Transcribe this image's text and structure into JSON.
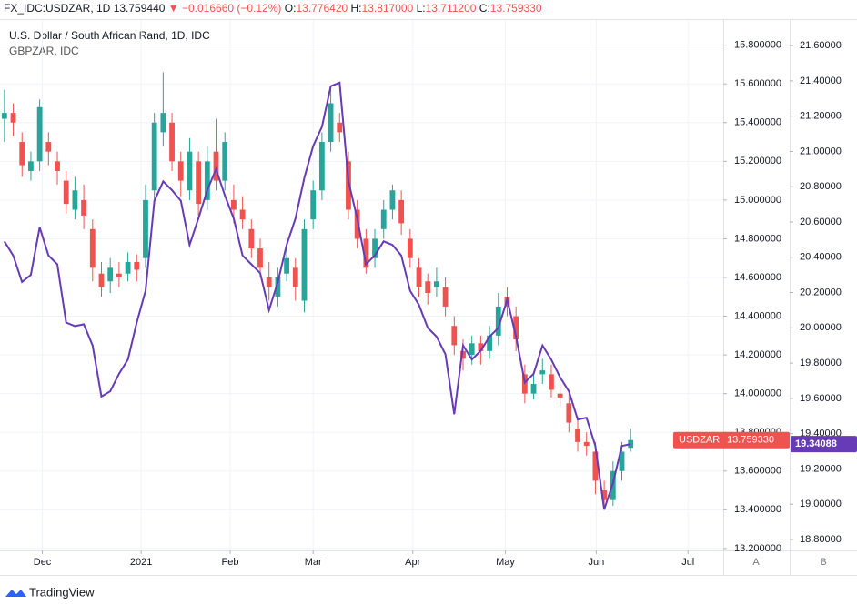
{
  "header": {
    "symbol": "FX_IDC:USDZAR, 1D",
    "last": "13.759440",
    "change": "▼ −0.016660 (−0.12%)",
    "o_label": "O:",
    "o": "13.776420",
    "h_label": "H:",
    "h": "13.817000",
    "l_label": "L:",
    "l": "13.711200",
    "c_label": "C:",
    "c": "13.759330"
  },
  "footer": {
    "brand": "TradingView",
    "axis_a": "A",
    "axis_b": "B"
  },
  "chart_data": {
    "type": "candlestick",
    "title": "U.S. Dollar / South African Rand, 1D, IDC",
    "grid": true,
    "xlim": [
      -0.5,
      81.5
    ],
    "xticks": [
      {
        "value": 4.3,
        "label": "Dec"
      },
      {
        "value": 15.5,
        "label": "2021"
      },
      {
        "value": 25.6,
        "label": "Feb"
      },
      {
        "value": 35,
        "label": "Mar"
      },
      {
        "value": 46.3,
        "label": "Apr"
      },
      {
        "value": 56.8,
        "label": "May"
      },
      {
        "value": 67.1,
        "label": "Jun"
      },
      {
        "value": 77.5,
        "label": "Jul"
      }
    ],
    "ylim": [
      13.19,
      15.93
    ],
    "yticks": [
      {
        "value": 13.2,
        "label": "13.200000"
      },
      {
        "value": 13.4,
        "label": "13.400000"
      },
      {
        "value": 13.6,
        "label": "13.600000"
      },
      {
        "value": 13.8,
        "label": "13.800000"
      },
      {
        "value": 14.0,
        "label": "14.000000"
      },
      {
        "value": 14.2,
        "label": "14.200000"
      },
      {
        "value": 14.4,
        "label": "14.400000"
      },
      {
        "value": 14.6,
        "label": "14.600000"
      },
      {
        "value": 14.8,
        "label": "14.800000"
      },
      {
        "value": 15.0,
        "label": "15.000000"
      },
      {
        "value": 15.2,
        "label": "15.200000"
      },
      {
        "value": 15.4,
        "label": "15.400000"
      },
      {
        "value": 15.6,
        "label": "15.600000"
      },
      {
        "value": 15.8,
        "label": "15.800000"
      }
    ],
    "y2lim": [
      18.738,
      21.745
    ],
    "y2ticks": [
      {
        "value": 18.8,
        "label": "18.80000"
      },
      {
        "value": 19.0,
        "label": "19.00000"
      },
      {
        "value": 19.2,
        "label": "19.20000"
      },
      {
        "value": 19.4,
        "label": "19.40000"
      },
      {
        "value": 19.6,
        "label": "19.60000"
      },
      {
        "value": 19.8,
        "label": "19.80000"
      },
      {
        "value": 20.0,
        "label": "20.00000"
      },
      {
        "value": 20.2,
        "label": "20.20000"
      },
      {
        "value": 20.4,
        "label": "20.40000"
      },
      {
        "value": 20.6,
        "label": "20.60000"
      },
      {
        "value": 20.8,
        "label": "20.80000"
      },
      {
        "value": 21.0,
        "label": "21.00000"
      },
      {
        "value": 21.2,
        "label": "21.20000"
      },
      {
        "value": 21.4,
        "label": "21.40000"
      },
      {
        "value": 21.6,
        "label": "21.60000"
      }
    ],
    "series": [
      {
        "name": "USDZAR",
        "type": "candlestick",
        "up_color": "#26a69a",
        "down_color": "#ef5350",
        "last_label": "13.759330",
        "open": [
          15.42,
          15.45,
          15.3,
          15.15,
          15.2,
          15.3,
          15.2,
          15.1,
          14.95,
          15.0,
          14.85,
          14.62,
          14.58,
          14.62,
          14.62,
          14.68,
          14.7,
          15.05,
          15.35,
          15.4,
          15.2,
          15.05,
          15.2,
          15.0,
          15.25,
          15.1,
          15.0,
          14.95,
          14.85,
          14.75,
          14.6,
          14.5,
          14.62,
          14.65,
          14.48,
          14.9,
          15.05,
          15.3,
          15.4,
          15.2,
          14.95,
          14.8,
          14.7,
          14.85,
          14.95,
          15.0,
          14.8,
          14.65,
          14.58,
          14.55,
          14.55,
          14.35,
          14.22,
          14.2,
          14.26,
          14.22,
          14.3,
          14.5,
          14.4,
          14.1,
          14.0,
          14.1,
          14.1,
          14.0,
          13.95,
          13.82,
          13.75,
          13.7,
          13.5,
          13.45,
          13.6,
          13.72
        ],
        "high": [
          15.57,
          15.5,
          15.35,
          15.25,
          15.52,
          15.35,
          15.25,
          15.15,
          15.12,
          15.08,
          14.9,
          14.68,
          14.7,
          14.68,
          14.73,
          14.72,
          15.08,
          15.45,
          15.66,
          15.45,
          15.25,
          15.32,
          15.25,
          15.28,
          15.42,
          15.35,
          15.08,
          15.02,
          14.9,
          14.8,
          14.68,
          14.65,
          14.78,
          14.7,
          14.9,
          15.1,
          15.35,
          15.58,
          15.45,
          15.25,
          15.0,
          14.85,
          14.85,
          15.0,
          15.08,
          15.05,
          14.85,
          14.7,
          14.62,
          14.65,
          14.6,
          14.4,
          14.28,
          14.3,
          14.3,
          14.35,
          14.52,
          14.55,
          14.45,
          14.15,
          14.1,
          14.18,
          14.15,
          14.05,
          14.0,
          13.88,
          13.8,
          13.75,
          13.55,
          13.65,
          13.75,
          13.82
        ],
        "low": [
          15.3,
          15.33,
          15.12,
          15.1,
          15.15,
          15.18,
          15.08,
          14.93,
          14.9,
          14.85,
          14.58,
          14.5,
          14.52,
          14.55,
          14.58,
          14.58,
          14.65,
          15.0,
          15.28,
          15.15,
          15.02,
          15.0,
          14.92,
          14.95,
          15.05,
          15.05,
          14.88,
          14.85,
          14.7,
          14.6,
          14.48,
          14.45,
          14.58,
          14.48,
          14.42,
          14.85,
          15.0,
          15.25,
          15.3,
          14.9,
          14.75,
          14.62,
          14.65,
          14.8,
          14.9,
          14.82,
          14.65,
          14.5,
          14.46,
          14.5,
          14.4,
          14.2,
          14.12,
          14.15,
          14.15,
          14.18,
          14.25,
          14.4,
          14.22,
          13.95,
          13.97,
          14.05,
          13.98,
          13.93,
          13.8,
          13.7,
          13.68,
          13.48,
          13.4,
          13.42,
          13.55,
          13.7
        ],
        "close": [
          15.45,
          15.4,
          15.18,
          15.2,
          15.48,
          15.25,
          15.15,
          14.98,
          15.05,
          14.92,
          14.65,
          14.55,
          14.65,
          14.6,
          14.68,
          14.64,
          15.0,
          15.4,
          15.45,
          15.2,
          15.1,
          15.25,
          14.98,
          15.2,
          15.1,
          15.3,
          14.95,
          14.9,
          14.75,
          14.65,
          14.55,
          14.6,
          14.7,
          14.55,
          14.85,
          15.05,
          15.3,
          15.5,
          15.35,
          14.95,
          14.8,
          14.65,
          14.8,
          14.95,
          15.05,
          14.88,
          14.7,
          14.55,
          14.52,
          14.58,
          14.45,
          14.25,
          14.18,
          14.26,
          14.22,
          14.3,
          14.45,
          14.45,
          14.28,
          14.0,
          14.05,
          14.12,
          14.02,
          13.98,
          13.85,
          13.75,
          13.73,
          13.55,
          13.45,
          13.6,
          13.7,
          13.76
        ]
      },
      {
        "name": "GBPZAR, IDC",
        "type": "line",
        "axis": "y2",
        "color": "#673ab7",
        "last_label": "19.34088",
        "values": [
          20.49,
          20.41,
          20.26,
          20.3,
          20.57,
          20.41,
          20.36,
          20.03,
          20.01,
          20.02,
          19.9,
          19.61,
          19.64,
          19.74,
          19.82,
          20.03,
          20.21,
          20.72,
          20.83,
          20.78,
          20.72,
          20.47,
          20.62,
          20.78,
          20.9,
          20.75,
          20.62,
          20.41,
          20.36,
          20.31,
          20.1,
          20.26,
          20.47,
          20.62,
          20.85,
          21.03,
          21.14,
          21.37,
          21.39,
          20.83,
          20.62,
          20.36,
          20.41,
          20.49,
          20.47,
          20.41,
          20.21,
          20.13,
          20.0,
          19.95,
          19.85,
          19.51,
          19.9,
          19.82,
          19.87,
          19.95,
          20.0,
          20.16,
          19.95,
          19.69,
          19.74,
          19.9,
          19.82,
          19.72,
          19.64,
          19.48,
          19.49,
          19.33,
          18.97,
          19.12,
          19.33,
          19.34088
        ]
      }
    ]
  }
}
